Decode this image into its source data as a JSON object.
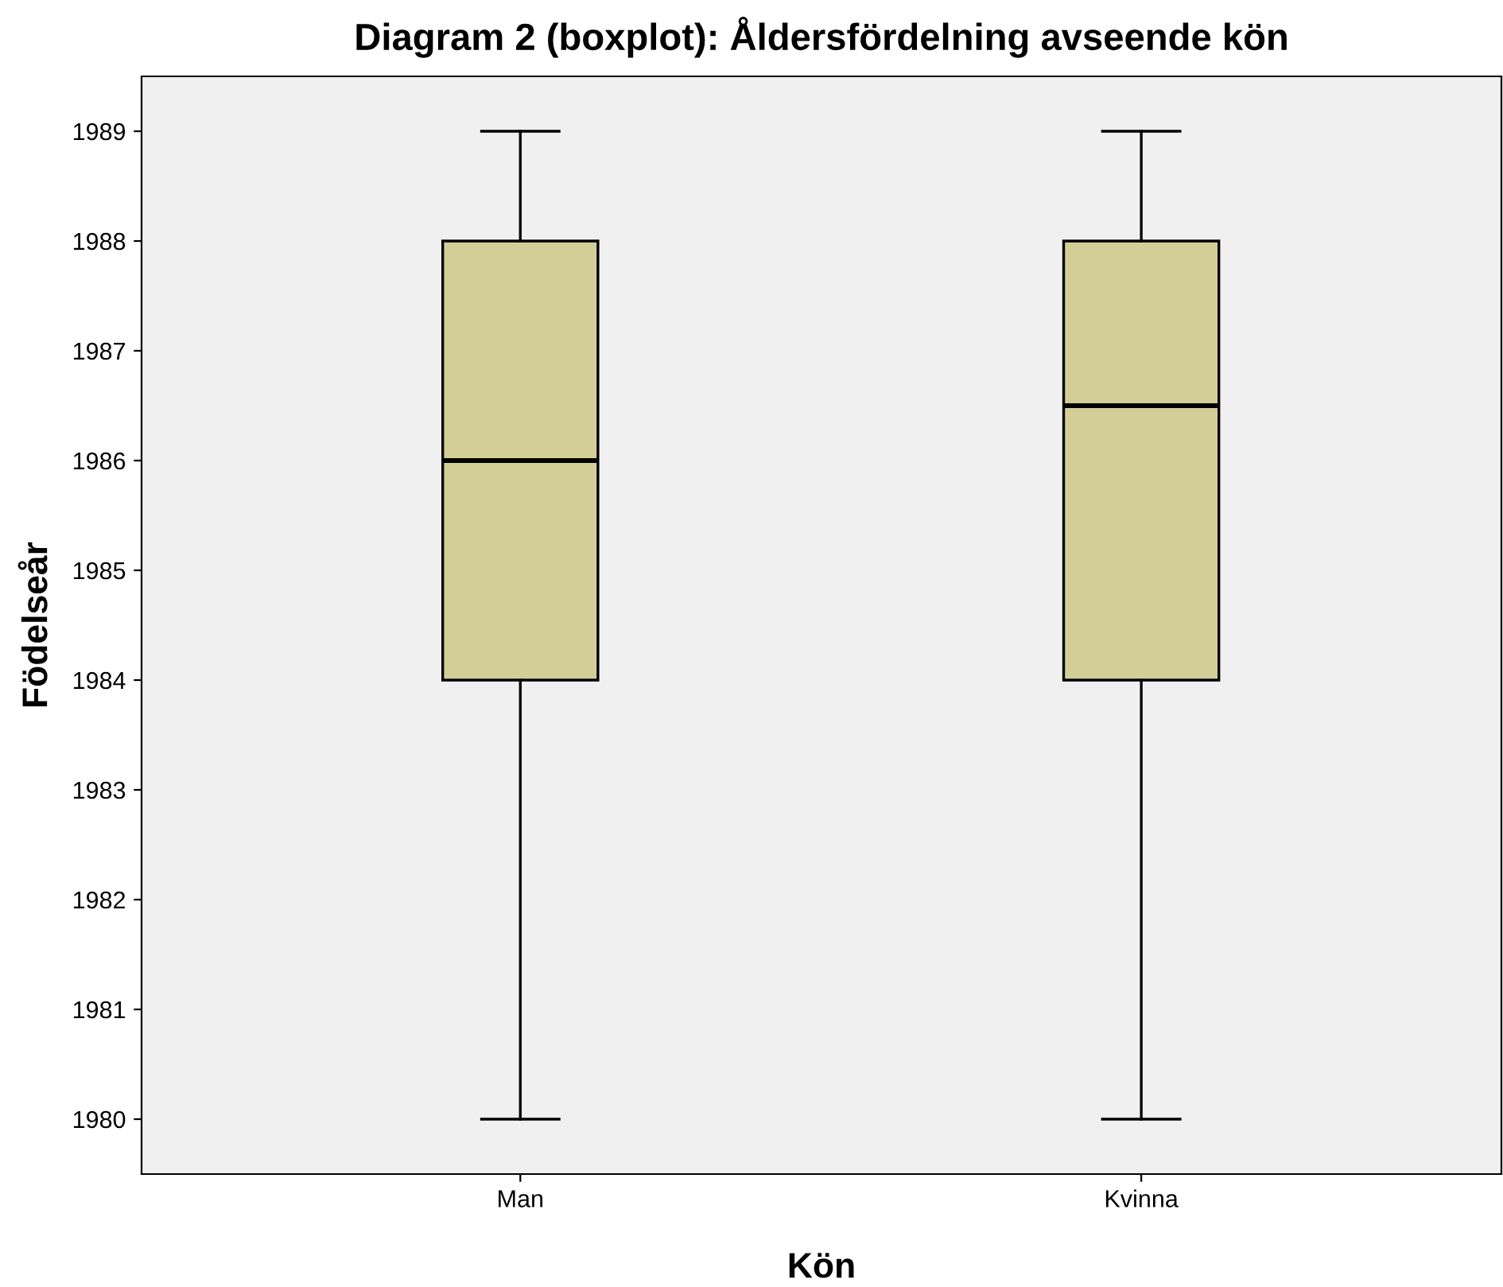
{
  "chart_data": {
    "type": "box",
    "title": "Diagram 2 (boxplot): Åldersfördelning avseende kön",
    "xlabel": "Kön",
    "ylabel": "Födelseår",
    "categories": [
      "Man",
      "Kvinna"
    ],
    "series": [
      {
        "color": "#d3ce98",
        "boxes": [
          {
            "low": 1980,
            "q1": 1984,
            "median": 1986,
            "q3": 1988,
            "high": 1989
          },
          {
            "low": 1980,
            "q1": 1984,
            "median": 1986.5,
            "q3": 1988,
            "high": 1989
          }
        ]
      }
    ],
    "ylim": [
      1979.5,
      1989.5
    ],
    "yticks": [
      1980,
      1981,
      1982,
      1983,
      1984,
      1985,
      1986,
      1987,
      1988,
      1989
    ],
    "grid": false,
    "legend": false
  }
}
